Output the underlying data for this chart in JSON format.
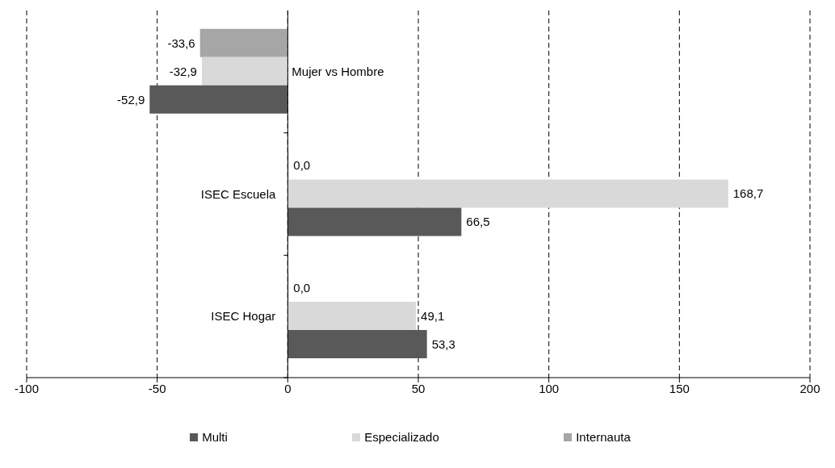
{
  "chart_data": {
    "type": "bar",
    "orientation": "horizontal",
    "categories": [
      "Mujer vs Hombre",
      "ISEC Escuela",
      "ISEC Hogar"
    ],
    "series": [
      {
        "name": "Multi",
        "color": "#595959",
        "values": [
          -52.9,
          66.5,
          53.3
        ],
        "value_labels": [
          "-52,9",
          "66,5",
          "53,3"
        ]
      },
      {
        "name": "Especializado",
        "color": "#d9d9d9",
        "values": [
          -32.9,
          168.7,
          49.1
        ],
        "value_labels": [
          "-32,9",
          "168,7",
          "49,1"
        ]
      },
      {
        "name": "Internauta",
        "color": "#a6a6a6",
        "values": [
          -33.6,
          0,
          0
        ],
        "value_labels": [
          "-33,6",
          "0,0",
          "0,0"
        ]
      }
    ],
    "xlim": [
      -100,
      200
    ],
    "xticks": [
      -100,
      -50,
      0,
      50,
      100,
      150,
      200
    ],
    "grid": "x",
    "legend": "bottom"
  }
}
